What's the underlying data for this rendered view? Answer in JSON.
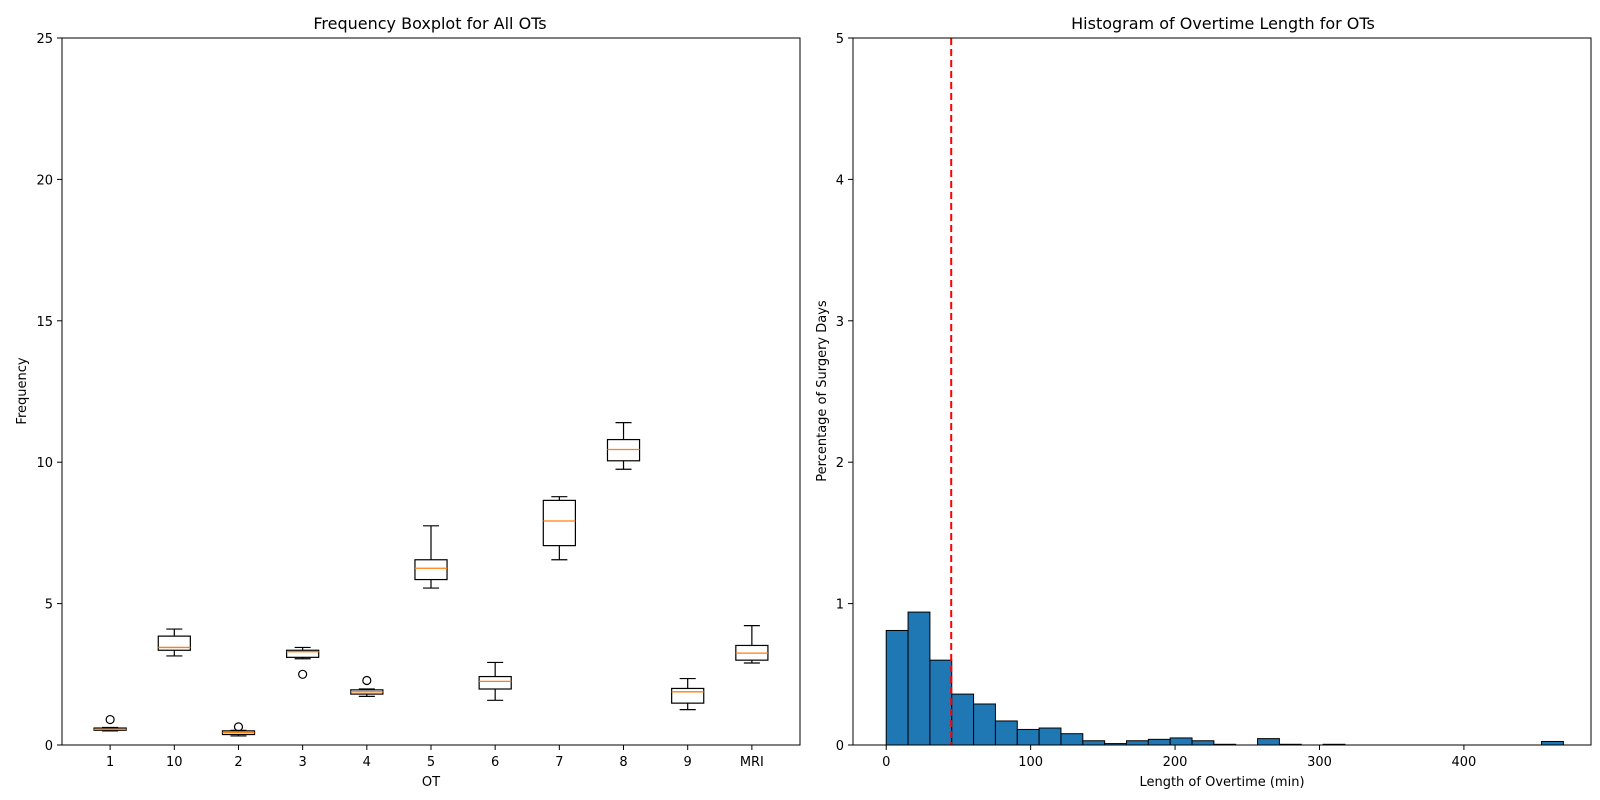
{
  "chart_data": [
    {
      "type": "boxplot",
      "title": "Frequency Boxplot for All OTs",
      "xlabel": "OT",
      "ylabel": "Frequency",
      "ylim": [
        0,
        25
      ],
      "yticks": [
        0,
        5,
        10,
        15,
        20,
        25
      ],
      "grid": false,
      "median_color": "#ff7f0e",
      "categories": [
        "1",
        "10",
        "2",
        "3",
        "4",
        "5",
        "6",
        "7",
        "8",
        "9",
        "MRI"
      ],
      "boxes": [
        {
          "label": "1",
          "whislo": 0.5,
          "q1": 0.52,
          "med": 0.55,
          "q3": 0.6,
          "whishi": 0.62,
          "fliers": [
            0.9
          ]
        },
        {
          "label": "10",
          "whislo": 3.15,
          "q1": 3.35,
          "med": 3.45,
          "q3": 3.85,
          "whishi": 4.1,
          "fliers": []
        },
        {
          "label": "2",
          "whislo": 0.32,
          "q1": 0.37,
          "med": 0.44,
          "q3": 0.5,
          "whishi": 0.52,
          "fliers": [
            0.64
          ]
        },
        {
          "label": "3",
          "whislo": 3.05,
          "q1": 3.1,
          "med": 3.3,
          "q3": 3.35,
          "whishi": 3.45,
          "fliers": [
            2.5
          ]
        },
        {
          "label": "4",
          "whislo": 1.72,
          "q1": 1.8,
          "med": 1.88,
          "q3": 1.95,
          "whishi": 1.98,
          "fliers": [
            2.28
          ]
        },
        {
          "label": "5",
          "whislo": 5.55,
          "q1": 5.85,
          "med": 6.25,
          "q3": 6.55,
          "whishi": 7.75,
          "fliers": []
        },
        {
          "label": "6",
          "whislo": 1.58,
          "q1": 1.98,
          "med": 2.25,
          "q3": 2.42,
          "whishi": 2.92,
          "fliers": []
        },
        {
          "label": "7",
          "whislo": 6.55,
          "q1": 7.05,
          "med": 7.92,
          "q3": 8.65,
          "whishi": 8.78,
          "fliers": []
        },
        {
          "label": "8",
          "whislo": 9.75,
          "q1": 10.05,
          "med": 10.45,
          "q3": 10.8,
          "whishi": 11.4,
          "fliers": []
        },
        {
          "label": "9",
          "whislo": 1.25,
          "q1": 1.48,
          "med": 1.88,
          "q3": 2.0,
          "whishi": 2.35,
          "fliers": []
        },
        {
          "label": "MRI",
          "whislo": 2.9,
          "q1": 3.0,
          "med": 3.25,
          "q3": 3.52,
          "whishi": 4.22,
          "fliers": []
        }
      ]
    },
    {
      "type": "histogram",
      "title": "Histogram of Overtime Length for OTs",
      "xlabel": "Length of Overtime (min)",
      "ylabel": "Percentage of Surgery Days",
      "xlim": [
        -23,
        488
      ],
      "ylim": [
        0,
        5
      ],
      "xticks": [
        0,
        100,
        200,
        300,
        400
      ],
      "yticks": [
        0,
        1,
        2,
        3,
        4,
        5
      ],
      "grid": false,
      "bar_color": "#1f77b4",
      "edge_color": "#000000",
      "bin_width": 15.125,
      "bins": [
        {
          "x0": 0.0,
          "value": 0.81
        },
        {
          "x0": 15.125,
          "value": 0.94
        },
        {
          "x0": 30.25,
          "value": 0.6
        },
        {
          "x0": 45.375,
          "value": 0.36
        },
        {
          "x0": 60.5,
          "value": 0.29
        },
        {
          "x0": 75.625,
          "value": 0.17
        },
        {
          "x0": 90.75,
          "value": 0.11
        },
        {
          "x0": 105.875,
          "value": 0.12
        },
        {
          "x0": 121.0,
          "value": 0.08
        },
        {
          "x0": 136.125,
          "value": 0.03
        },
        {
          "x0": 151.25,
          "value": 0.01
        },
        {
          "x0": 166.375,
          "value": 0.03
        },
        {
          "x0": 181.5,
          "value": 0.04
        },
        {
          "x0": 196.625,
          "value": 0.05
        },
        {
          "x0": 211.75,
          "value": 0.03
        },
        {
          "x0": 226.875,
          "value": 0.005
        },
        {
          "x0": 257.125,
          "value": 0.045
        },
        {
          "x0": 272.25,
          "value": 0.005
        },
        {
          "x0": 302.5,
          "value": 0.005
        },
        {
          "x0": 453.75,
          "value": 0.025
        }
      ],
      "reference_line": {
        "x": 45,
        "color": "#ff0000",
        "style": "dashed"
      }
    }
  ]
}
